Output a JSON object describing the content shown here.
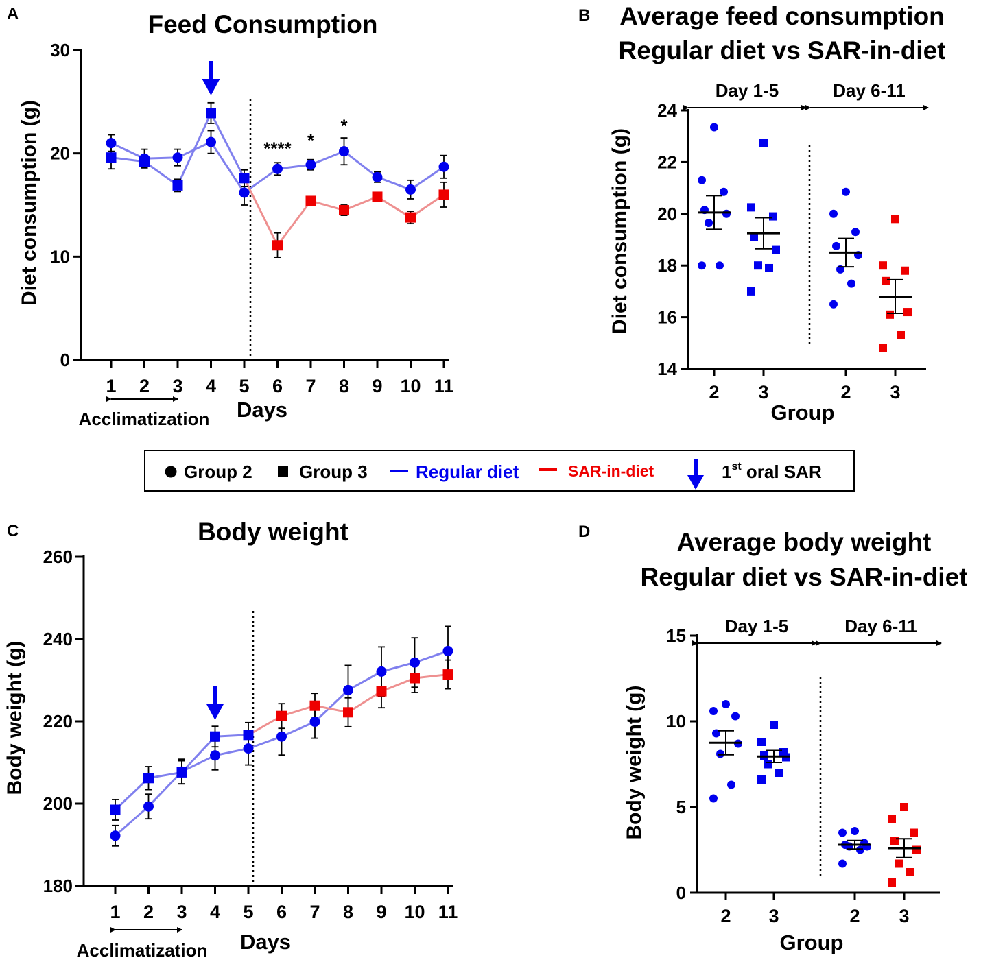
{
  "colors": {
    "blue": "#0000ee",
    "light_blue": "#8080ee",
    "red": "#ee0000",
    "light_red": "#ee9090",
    "black": "#000000"
  },
  "legend": {
    "group2": "Group 2",
    "group3": "Group 3",
    "regular": "Regular diet",
    "sar": "SAR-in-diet",
    "oral_prefix": "1",
    "oral_sup": "st",
    "oral_suffix": " oral SAR"
  },
  "chart_data": [
    {
      "id": "A",
      "panel_label": "A",
      "type": "line",
      "title": "Feed Consumption",
      "xlabel": "Days",
      "ylabel": "Diet consumption (g)",
      "categories": [
        "1",
        "2",
        "3",
        "4",
        "5",
        "6",
        "7",
        "8",
        "9",
        "10",
        "11"
      ],
      "ylim": [
        0,
        30
      ],
      "yticks": [
        "0",
        "10",
        "20",
        "30"
      ],
      "acclimatization_label": "Acclimatization",
      "series": [
        {
          "name": "Group 2",
          "marker": "circle",
          "values": [
            21.0,
            19.5,
            19.6,
            21.1,
            16.2,
            18.5,
            18.9,
            20.2,
            17.7,
            16.5,
            18.7
          ],
          "errors": [
            0.8,
            0.9,
            0.8,
            1.1,
            1.2,
            0.6,
            0.5,
            1.3,
            0.5,
            0.9,
            1.1
          ]
        },
        {
          "name": "Group 3",
          "marker": "square",
          "values": [
            19.6,
            19.2,
            16.9,
            23.9,
            17.6,
            11.1,
            15.4,
            14.5,
            15.8,
            13.8,
            16.0
          ],
          "errors": [
            1.1,
            0.6,
            0.6,
            1.0,
            0.8,
            1.2,
            0.3,
            0.5,
            0.3,
            0.6,
            1.2
          ]
        }
      ],
      "annotations": [
        {
          "day": 6,
          "text": "****",
          "y": 20.4
        },
        {
          "day": 7,
          "text": "*",
          "y": 21.2
        },
        {
          "day": 8,
          "text": "*",
          "y": 22.6
        }
      ],
      "arrow_day": 4
    },
    {
      "id": "B",
      "panel_label": "B",
      "type": "scatter",
      "title_lines": [
        "Average feed consumption",
        "Regular diet vs SAR-in-diet"
      ],
      "xlabel": "Group",
      "ylabel": "Diet consumption (g)",
      "ylim": [
        14,
        24
      ],
      "yticks": [
        "14",
        "16",
        "18",
        "20",
        "22",
        "24"
      ],
      "periods": [
        "Day 1-5",
        "Day 6-11"
      ],
      "groups": [
        {
          "label": "2",
          "marker": "circle",
          "period": "Day 1-5",
          "mean": 20.05,
          "sem": 0.65,
          "points": [
            23.35,
            21.3,
            20.85,
            20.15,
            20.0,
            19.65,
            18.0,
            18.0
          ]
        },
        {
          "label": "3",
          "marker": "square",
          "period": "Day 1-5",
          "mean": 19.25,
          "sem": 0.6,
          "points": [
            22.75,
            20.25,
            19.9,
            19.1,
            18.6,
            18.0,
            17.9,
            17.0
          ]
        },
        {
          "label": "2",
          "marker": "circle",
          "period": "Day 6-11",
          "mean": 18.5,
          "sem": 0.55,
          "points": [
            20.85,
            20.0,
            19.3,
            18.75,
            18.4,
            17.85,
            17.3,
            16.5
          ]
        },
        {
          "label": "3",
          "marker": "square",
          "period": "Day 6-11",
          "mean": 16.8,
          "sem": 0.65,
          "points": [
            19.8,
            18.0,
            17.8,
            17.4,
            16.2,
            16.1,
            15.3,
            14.8
          ]
        }
      ]
    },
    {
      "id": "C",
      "panel_label": "C",
      "type": "line",
      "title": "Body weight",
      "xlabel": "Days",
      "ylabel": "Body weight (g)",
      "categories": [
        "1",
        "2",
        "3",
        "4",
        "5",
        "6",
        "7",
        "8",
        "9",
        "10",
        "11"
      ],
      "ylim": [
        180,
        260
      ],
      "yticks": [
        "180",
        "200",
        "220",
        "240",
        "260"
      ],
      "acclimatization_label": "Acclimatization",
      "series": [
        {
          "name": "Group 2",
          "marker": "circle",
          "values": [
            192.2,
            199.3,
            207.8,
            211.7,
            213.4,
            216.3,
            219.9,
            227.6,
            232.1,
            234.3,
            237.1
          ],
          "errors": [
            2.5,
            3.0,
            3.0,
            3.5,
            4.0,
            4.5,
            4.0,
            6.0,
            6.0,
            6.0,
            6.0
          ]
        },
        {
          "name": "Group 3",
          "marker": "square",
          "values": [
            198.5,
            206.2,
            207.6,
            216.3,
            216.7,
            221.3,
            223.8,
            222.2,
            227.3,
            230.5,
            231.4
          ],
          "errors": [
            2.5,
            2.8,
            2.8,
            2.5,
            3.0,
            3.0,
            3.0,
            3.5,
            4.0,
            3.5,
            3.5
          ]
        }
      ],
      "arrow_day": 4
    },
    {
      "id": "D",
      "panel_label": "D",
      "type": "scatter",
      "title_lines": [
        "Average body weight",
        "Regular diet vs SAR-in-diet"
      ],
      "xlabel": "Group",
      "ylabel": "Body weight (g)",
      "ylim": [
        0,
        15
      ],
      "yticks": [
        "0",
        "5",
        "10",
        "15"
      ],
      "periods": [
        "Day 1-5",
        "Day 6-11"
      ],
      "groups": [
        {
          "label": "2",
          "marker": "circle",
          "period": "Day 1-5",
          "mean": 8.75,
          "sem": 0.7,
          "points": [
            11.0,
            10.6,
            10.3,
            9.3,
            8.7,
            8.1,
            6.3,
            5.5
          ]
        },
        {
          "label": "3",
          "marker": "square",
          "period": "Day 1-5",
          "mean": 7.95,
          "sem": 0.35,
          "points": [
            9.8,
            8.8,
            8.2,
            8.0,
            7.9,
            7.5,
            7.0,
            6.6
          ]
        },
        {
          "label": "2",
          "marker": "circle",
          "period": "Day 6-11",
          "mean": 2.8,
          "sem": 0.25,
          "points": [
            3.6,
            3.5,
            2.9,
            2.8,
            2.7,
            2.7,
            2.5,
            1.7
          ]
        },
        {
          "label": "3",
          "marker": "square",
          "period": "Day 6-11",
          "mean": 2.6,
          "sem": 0.55,
          "points": [
            5.0,
            4.3,
            3.5,
            3.0,
            2.5,
            1.7,
            1.2,
            0.6
          ]
        }
      ]
    }
  ]
}
